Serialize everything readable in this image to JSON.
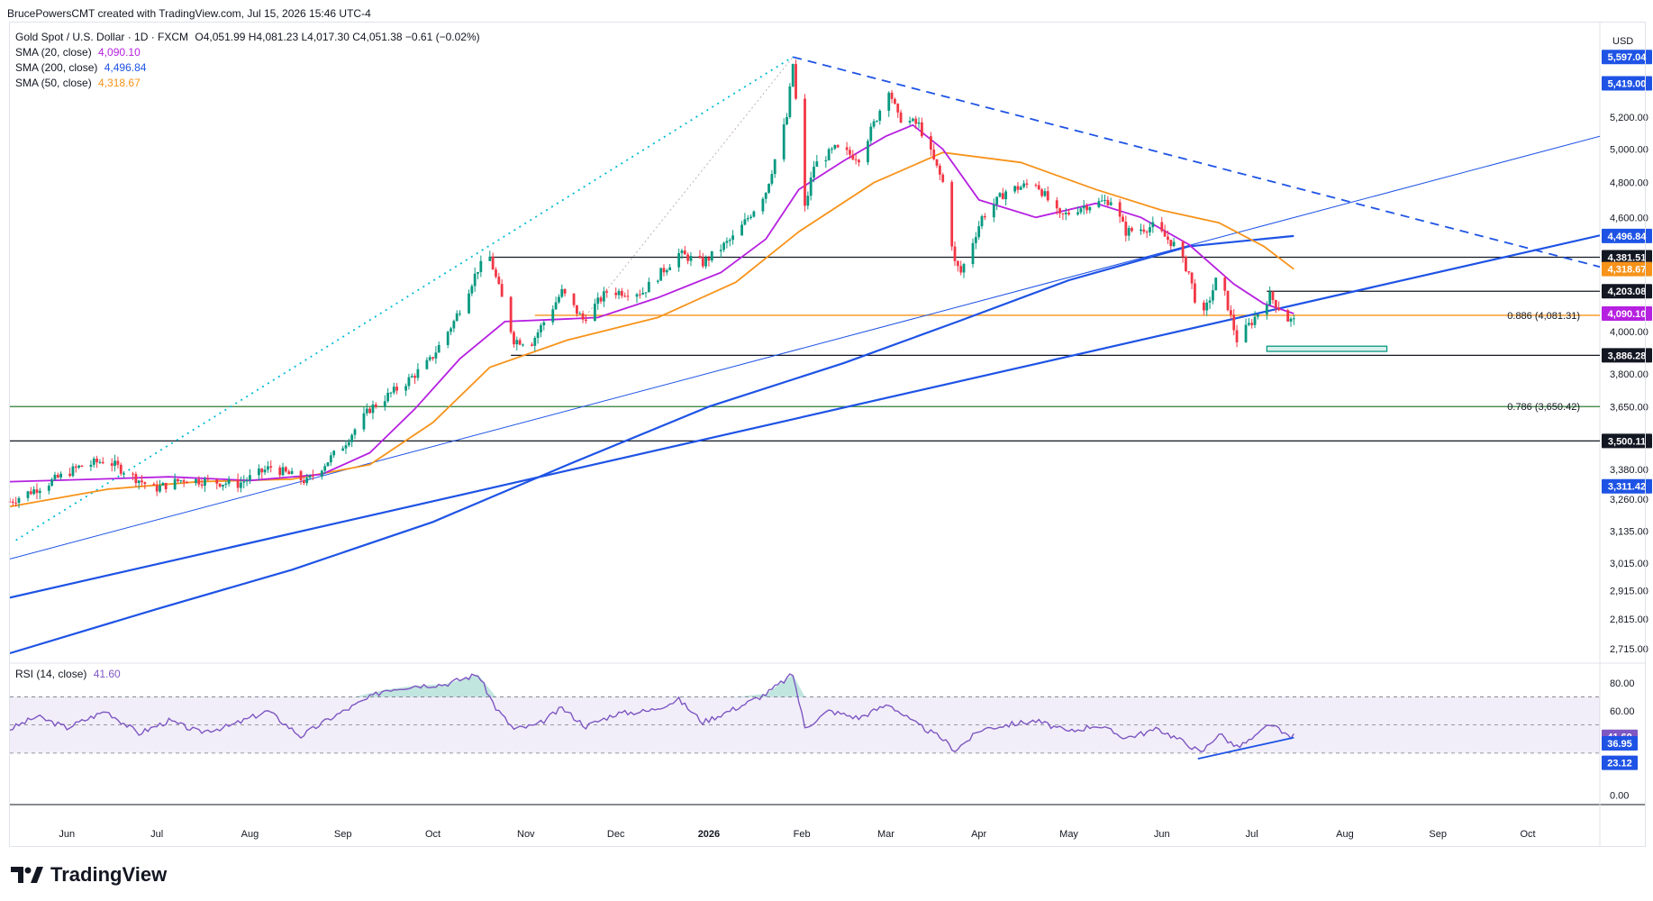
{
  "header": {
    "credit": "BrucePowersCMT created with TradingView.com, Jul 15, 2026 15:46 UTC-4"
  },
  "legend": {
    "symbol": "Gold Spot / U.S. Dollar · 1D · FXCM",
    "ohlc": "O4,051.99 H4,081.23 L4,017.30 C4,051.38 −0.61 (−0.02%)",
    "sma20_label": "SMA (20, close)",
    "sma20_value": "4,090.10",
    "sma200_label": "SMA (200, close)",
    "sma200_value": "4,496.84",
    "sma50_label": "SMA (50, close)",
    "sma50_value": "4,318.67",
    "rsi_label": "RSI (14, close)",
    "rsi_value": "41.60"
  },
  "colors": {
    "up": "#089981",
    "down": "#f23645",
    "sma20": "#b620e0",
    "sma50": "#f7931a",
    "sma200": "#1e53e5",
    "trend": "#1e53e5",
    "fib886": "#f7931a",
    "fib786": "#2e7d32",
    "rsi": "#7e57c2",
    "level": "#131722",
    "target_box": "#089981"
  },
  "chart_data": [
    {
      "type": "candlestick",
      "title": "Gold Spot / U.S. Dollar · 1D · FXCM",
      "y_axis": {
        "unit": "USD",
        "scale": "log",
        "ticks": [
          "5,200.00",
          "5,000.00",
          "4,800.00",
          "4,600.00",
          "4,000.00",
          "3,800.00",
          "3,650.00",
          "3,380.00",
          "3,260.00",
          "3,135.00",
          "3,015.00",
          "2,915.00",
          "2,815.00",
          "2,715.00"
        ],
        "tick_values": [
          5200,
          5000,
          4800,
          4600,
          4000,
          3800,
          3650,
          3380,
          3260,
          3135,
          3015,
          2915,
          2815,
          2715
        ]
      },
      "x_axis": {
        "ticks": [
          "Jun",
          "Jul",
          "Aug",
          "Sep",
          "Oct",
          "Nov",
          "Dec",
          "2026",
          "Feb",
          "Mar",
          "Apr",
          "May",
          "Jun",
          "Jul",
          "Aug",
          "Sep",
          "Oct"
        ],
        "tick_dates": [
          "2025-06-01",
          "2025-07-01",
          "2025-08-01",
          "2025-09-01",
          "2025-10-01",
          "2025-11-01",
          "2025-12-01",
          "2026-01-01",
          "2026-02-01",
          "2026-03-01",
          "2026-04-01",
          "2026-05-01",
          "2026-06-01",
          "2026-07-01",
          "2026-08-01",
          "2026-09-01",
          "2026-10-01"
        ],
        "range": [
          "2025-05-13",
          "2026-10-25"
        ]
      },
      "price_path": [
        [
          "2025-05-13",
          3250
        ],
        [
          "2025-05-25",
          3320
        ],
        [
          "2025-06-05",
          3390
        ],
        [
          "2025-06-14",
          3420
        ],
        [
          "2025-06-30",
          3300
        ],
        [
          "2025-07-10",
          3340
        ],
        [
          "2025-07-28",
          3320
        ],
        [
          "2025-08-08",
          3390
        ],
        [
          "2025-08-20",
          3330
        ],
        [
          "2025-09-01",
          3480
        ],
        [
          "2025-09-10",
          3640
        ],
        [
          "2025-09-22",
          3760
        ],
        [
          "2025-09-30",
          3860
        ],
        [
          "2025-10-08",
          4050
        ],
        [
          "2025-10-16",
          4320
        ],
        [
          "2025-10-20",
          4381
        ],
        [
          "2025-10-28",
          3960
        ],
        [
          "2025-11-03",
          3950
        ],
        [
          "2025-11-13",
          4200
        ],
        [
          "2025-11-20",
          4060
        ],
        [
          "2025-11-28",
          4200
        ],
        [
          "2025-12-10",
          4200
        ],
        [
          "2025-12-22",
          4400
        ],
        [
          "2025-12-30",
          4350
        ],
        [
          "2026-01-10",
          4500
        ],
        [
          "2026-01-20",
          4750
        ],
        [
          "2026-01-27",
          5200
        ],
        [
          "2026-01-29",
          5550
        ],
        [
          "2026-02-02",
          4650
        ],
        [
          "2026-02-05",
          4900
        ],
        [
          "2026-02-12",
          5000
        ],
        [
          "2026-02-20",
          4950
        ],
        [
          "2026-02-26",
          5200
        ],
        [
          "2026-03-02",
          5390
        ],
        [
          "2026-03-05",
          5200
        ],
        [
          "2026-03-12",
          5150
        ],
        [
          "2026-03-20",
          4800
        ],
        [
          "2026-03-24",
          4350
        ],
        [
          "2026-03-26",
          4300
        ],
        [
          "2026-04-02",
          4600
        ],
        [
          "2026-04-10",
          4750
        ],
        [
          "2026-04-20",
          4800
        ],
        [
          "2026-04-28",
          4600
        ],
        [
          "2026-05-05",
          4660
        ],
        [
          "2026-05-15",
          4700
        ],
        [
          "2026-05-20",
          4520
        ],
        [
          "2026-05-29",
          4550
        ],
        [
          "2026-06-05",
          4450
        ],
        [
          "2026-06-10",
          4300
        ],
        [
          "2026-06-14",
          4040
        ],
        [
          "2026-06-20",
          4300
        ],
        [
          "2026-06-26",
          3960
        ],
        [
          "2026-07-01",
          4050
        ],
        [
          "2026-07-07",
          4180
        ],
        [
          "2026-07-13",
          4060
        ],
        [
          "2026-07-15",
          4051
        ]
      ],
      "sma20": [
        [
          "2025-05-13",
          3330
        ],
        [
          "2025-06-10",
          3340
        ],
        [
          "2025-07-05",
          3350
        ],
        [
          "2025-08-01",
          3335
        ],
        [
          "2025-08-25",
          3360
        ],
        [
          "2025-09-10",
          3450
        ],
        [
          "2025-09-25",
          3640
        ],
        [
          "2025-10-10",
          3870
        ],
        [
          "2025-10-25",
          4050
        ],
        [
          "2025-11-10",
          4060
        ],
        [
          "2025-11-25",
          4070
        ],
        [
          "2025-12-15",
          4170
        ],
        [
          "2026-01-05",
          4300
        ],
        [
          "2026-01-20",
          4480
        ],
        [
          "2026-01-31",
          4760
        ],
        [
          "2026-02-15",
          4930
        ],
        [
          "2026-03-01",
          5080
        ],
        [
          "2026-03-10",
          5150
        ],
        [
          "2026-03-20",
          5000
        ],
        [
          "2026-04-01",
          4700
        ],
        [
          "2026-04-20",
          4600
        ],
        [
          "2026-05-10",
          4680
        ],
        [
          "2026-05-25",
          4600
        ],
        [
          "2026-06-10",
          4450
        ],
        [
          "2026-06-25",
          4240
        ],
        [
          "2026-07-05",
          4140
        ],
        [
          "2026-07-15",
          4090
        ]
      ],
      "sma50": [
        [
          "2025-05-13",
          3230
        ],
        [
          "2025-06-15",
          3300
        ],
        [
          "2025-07-15",
          3330
        ],
        [
          "2025-08-15",
          3340
        ],
        [
          "2025-09-10",
          3400
        ],
        [
          "2025-10-01",
          3580
        ],
        [
          "2025-10-20",
          3830
        ],
        [
          "2025-11-15",
          3960
        ],
        [
          "2025-12-15",
          4070
        ],
        [
          "2026-01-10",
          4250
        ],
        [
          "2026-01-31",
          4520
        ],
        [
          "2026-02-25",
          4800
        ],
        [
          "2026-03-20",
          4980
        ],
        [
          "2026-04-15",
          4920
        ],
        [
          "2026-05-10",
          4760
        ],
        [
          "2026-06-01",
          4640
        ],
        [
          "2026-06-20",
          4570
        ],
        [
          "2026-07-05",
          4440
        ],
        [
          "2026-07-15",
          4318
        ]
      ],
      "sma200": [
        [
          "2025-05-13",
          2700
        ],
        [
          "2025-07-01",
          2850
        ],
        [
          "2025-08-15",
          2990
        ],
        [
          "2025-10-01",
          3170
        ],
        [
          "2025-11-15",
          3400
        ],
        [
          "2026-01-01",
          3650
        ],
        [
          "2026-02-15",
          3850
        ],
        [
          "2026-03-25",
          4050
        ],
        [
          "2026-05-01",
          4260
        ],
        [
          "2026-06-10",
          4440
        ],
        [
          "2026-07-15",
          4497
        ]
      ],
      "trendlines": [
        {
          "points": [
            [
              "2025-05-13",
              2890
            ],
            [
              "2026-10-25",
              4500
            ]
          ],
          "style": "solid",
          "color": "#1e53e5"
        },
        {
          "points": [
            [
              "2025-05-13",
              3030
            ],
            [
              "2026-10-25",
              5080
            ]
          ],
          "style": "thin",
          "color": "#1e53e5"
        },
        {
          "points": [
            [
              "2026-01-29",
              5597
            ],
            [
              "2026-10-25",
              4330
            ]
          ],
          "style": "dashed",
          "color": "#1e53e5"
        },
        {
          "points": [
            [
              "2025-05-15",
              3100
            ],
            [
              "2026-01-29",
              5597
            ]
          ],
          "style": "dotted",
          "color": "#00bcd4"
        },
        {
          "points": [
            [
              "2025-11-20",
              4060
            ],
            [
              "2026-01-29",
              5597
            ]
          ],
          "style": "faint-dotted",
          "color": "#b0a0a0"
        },
        {
          "points": [
            [
              "2026-06-10",
              4300
            ],
            [
              "2026-10-25",
              4380
            ]
          ],
          "style": "hidden",
          "color": "#1e53e5"
        }
      ],
      "levels": [
        {
          "value": 4381.51,
          "label": "4,381.51",
          "start": "2025-10-20",
          "color": "#131722"
        },
        {
          "value": 4203.08,
          "label": "4,203.08",
          "start": "2026-07-06",
          "color": "#131722"
        },
        {
          "value": 3886.28,
          "label": "3,886.28",
          "start": "2025-10-27",
          "color": "#131722"
        },
        {
          "value": 3500.11,
          "label": "3,500.11",
          "start": "2025-05-13",
          "color": "#131722"
        },
        {
          "value": 4081.31,
          "label": "0.886 (4,081.31)",
          "start": "2025-11-04",
          "color": "#f7931a",
          "fib": true
        },
        {
          "value": 3650.42,
          "label": "0.786 (3,650.42)",
          "start": "2025-05-13",
          "color": "#2e7d32",
          "fib": true
        }
      ],
      "target_box": {
        "from": "2026-07-06",
        "to": "2026-08-15",
        "high": 3930,
        "low": 3905
      },
      "price_badges": [
        {
          "label": "5,597.04",
          "value": 5597.04,
          "bg": "#1e53e5",
          "fg": "#ffffff"
        },
        {
          "label": "5,419.00",
          "value": 5419.0,
          "bg": "#1e53e5",
          "fg": "#ffffff"
        },
        {
          "label": "4,496.84",
          "value": 4496.84,
          "bg": "#1e53e5",
          "fg": "#ffffff"
        },
        {
          "label": "4,381.51",
          "value": 4381.51,
          "bg": "#131722",
          "fg": "#ffffff"
        },
        {
          "label": "4,318.67",
          "value": 4318.67,
          "bg": "#f7931a",
          "fg": "#ffffff"
        },
        {
          "label": "4,203.08",
          "value": 4203.08,
          "bg": "#131722",
          "fg": "#ffffff"
        },
        {
          "label": "4,090.10",
          "value": 4090.1,
          "bg": "#b620e0",
          "fg": "#ffffff"
        },
        {
          "label": "3,886.28",
          "value": 3886.28,
          "bg": "#131722",
          "fg": "#ffffff"
        },
        {
          "label": "3,500.11",
          "value": 3500.11,
          "bg": "#131722",
          "fg": "#ffffff"
        },
        {
          "label": "3,311.42",
          "value": 3311.42,
          "bg": "#1e53e5",
          "fg": "#ffffff"
        }
      ]
    },
    {
      "type": "line",
      "title": "RSI (14, close)",
      "y_axis": {
        "ticks": [
          "80.00",
          "60.00",
          "0.00"
        ],
        "tick_values": [
          80,
          60,
          0
        ],
        "range": [
          -6,
          94
        ]
      },
      "band": {
        "upper": 70,
        "middle": 50,
        "lower": 30
      },
      "rsi": [
        [
          "2025-05-13",
          47
        ],
        [
          "2025-05-22",
          56
        ],
        [
          "2025-06-01",
          48
        ],
        [
          "2025-06-14",
          60
        ],
        [
          "2025-06-25",
          44
        ],
        [
          "2025-07-05",
          53
        ],
        [
          "2025-07-15",
          45
        ],
        [
          "2025-07-25",
          49
        ],
        [
          "2025-08-07",
          60
        ],
        [
          "2025-08-18",
          42
        ],
        [
          "2025-08-28",
          55
        ],
        [
          "2025-09-05",
          64
        ],
        [
          "2025-09-15",
          75
        ],
        [
          "2025-09-25",
          78
        ],
        [
          "2025-10-05",
          79
        ],
        [
          "2025-10-16",
          86
        ],
        [
          "2025-10-22",
          62
        ],
        [
          "2025-10-28",
          47
        ],
        [
          "2025-11-05",
          50
        ],
        [
          "2025-11-13",
          62
        ],
        [
          "2025-11-21",
          49
        ],
        [
          "2025-12-01",
          58
        ],
        [
          "2025-12-12",
          60
        ],
        [
          "2025-12-22",
          68
        ],
        [
          "2025-12-30",
          52
        ],
        [
          "2026-01-10",
          62
        ],
        [
          "2026-01-20",
          72
        ],
        [
          "2026-01-29",
          86
        ],
        [
          "2026-02-02",
          48
        ],
        [
          "2026-02-10",
          60
        ],
        [
          "2026-02-20",
          55
        ],
        [
          "2026-03-02",
          65
        ],
        [
          "2026-03-10",
          52
        ],
        [
          "2026-03-20",
          40
        ],
        [
          "2026-03-24",
          32
        ],
        [
          "2026-04-02",
          47
        ],
        [
          "2026-04-10",
          50
        ],
        [
          "2026-04-20",
          53
        ],
        [
          "2026-05-01",
          45
        ],
        [
          "2026-05-10",
          50
        ],
        [
          "2026-05-20",
          41
        ],
        [
          "2026-05-31",
          47
        ],
        [
          "2026-06-10",
          36
        ],
        [
          "2026-06-14",
          30
        ],
        [
          "2026-06-20",
          44
        ],
        [
          "2026-06-26",
          34
        ],
        [
          "2026-07-02",
          41
        ],
        [
          "2026-07-07",
          51
        ],
        [
          "2026-07-12",
          43
        ],
        [
          "2026-07-15",
          42
        ]
      ],
      "trendline": [
        [
          "2026-06-13",
          26
        ],
        [
          "2026-07-15",
          41
        ]
      ],
      "badges": [
        {
          "label": "41.60",
          "value": 41.6,
          "bg": "#7e57c2",
          "fg": "#ffffff"
        },
        {
          "label": "36.95",
          "value": 36.95,
          "bg": "#1e53e5",
          "fg": "#ffffff"
        },
        {
          "label": "23.12",
          "value": 23.12,
          "bg": "#1e53e5",
          "fg": "#ffffff"
        }
      ]
    }
  ],
  "footer": {
    "brand": "TradingView"
  }
}
